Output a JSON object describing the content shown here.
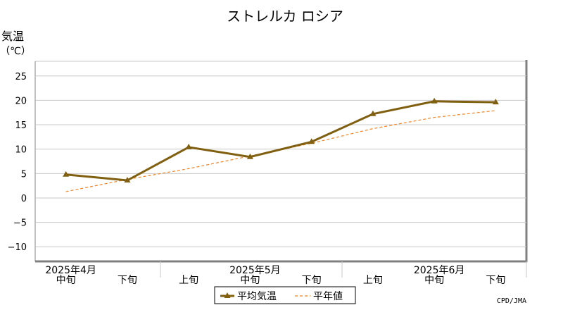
{
  "chart_data": {
    "type": "line",
    "title": "ストレルカ ロシア",
    "ylabel": "気温",
    "yunit": "（℃）",
    "ylim": [
      -13,
      28
    ],
    "yticks": [
      25,
      20,
      15,
      10,
      5,
      0,
      -5,
      -10
    ],
    "ytick_labels": [
      "25",
      "20",
      "15",
      "10",
      "5",
      "0",
      "−5",
      "−10"
    ],
    "grid": true,
    "categories": [
      {
        "label": "中旬",
        "month": "2025年4月"
      },
      {
        "label": "下旬",
        "month": ""
      },
      {
        "label": "上旬",
        "month": ""
      },
      {
        "label": "中旬",
        "month": "2025年5月"
      },
      {
        "label": "下旬",
        "month": ""
      },
      {
        "label": "上旬",
        "month": ""
      },
      {
        "label": "中旬",
        "month": "2025年6月"
      },
      {
        "label": "下旬",
        "month": ""
      }
    ],
    "series": [
      {
        "name": "平均気温",
        "color": "#806010",
        "style": "solid-marker",
        "values": [
          4.8,
          3.6,
          10.4,
          8.4,
          11.5,
          17.2,
          19.8,
          19.6
        ]
      },
      {
        "name": "平年値",
        "color": "#f08020",
        "style": "dashed",
        "values": [
          1.3,
          3.8,
          6.0,
          8.6,
          11.2,
          14.2,
          16.5,
          17.9
        ]
      }
    ],
    "legend": {
      "position": "bottom-center"
    },
    "credit": "CPD/JMA"
  }
}
